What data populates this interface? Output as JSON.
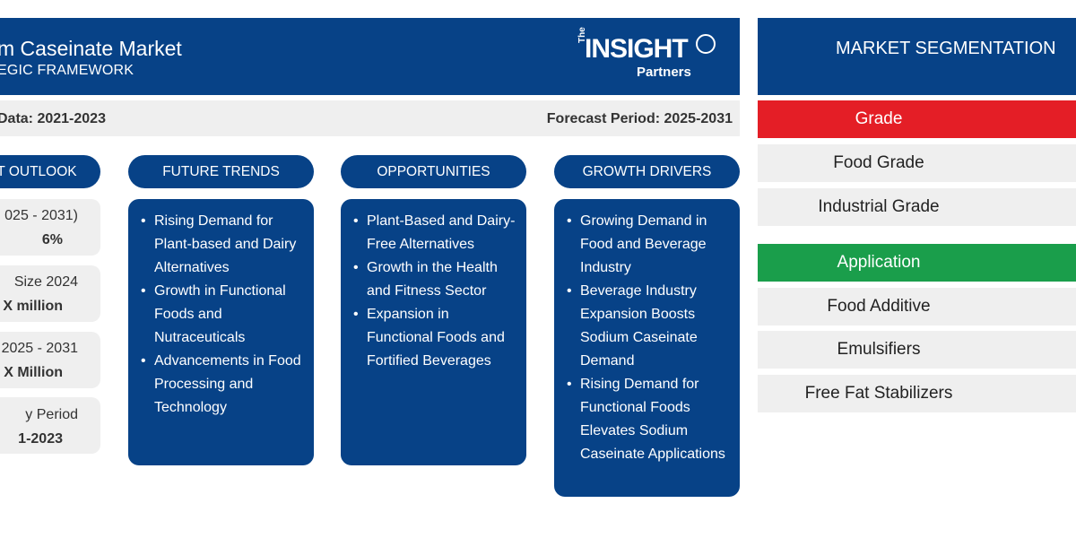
{
  "header": {
    "title": "m Caseinate Market",
    "subtitle": "EGIC FRAMEWORK",
    "logo": {
      "the": "The",
      "main": "INSIGHT",
      "sub": "Partners"
    }
  },
  "period": {
    "historical": "Data: 2021-2023",
    "forecast": "Forecast Period: 2025-2031"
  },
  "outlook": {
    "label": "T OUTLOOK",
    "stats": [
      {
        "label": "025 - 2031)",
        "value": "6%"
      },
      {
        "label": "Size 2024",
        "value": "X million"
      },
      {
        "label": "e 2025 - 2031",
        "value": "X Million"
      },
      {
        "label": "y Period",
        "value": "1-2023"
      }
    ]
  },
  "columns": [
    {
      "label": "FUTURE TRENDS",
      "items": [
        "Rising Demand for Plant-based and Dairy Alternatives",
        "Growth in Functional Foods and Nutraceuticals",
        "Advancements in Food Processing and Technology"
      ]
    },
    {
      "label": "OPPORTUNITIES",
      "items": [
        "Plant-Based and Dairy-Free Alternatives",
        "Growth in the Health and Fitness Sector",
        "Expansion in Functional Foods and Fortified Beverages"
      ]
    },
    {
      "label": "GROWTH DRIVERS",
      "items": [
        "Growing Demand in Food and Beverage Industry",
        "Beverage Industry Expansion Boosts Sodium Caseinate Demand",
        "Rising Demand for Functional Foods Elevates Sodium Caseinate Applications"
      ]
    }
  ],
  "segmentation": {
    "title": "MARKET SEGMENTATION",
    "groups": [
      {
        "name": "Grade",
        "color": "#e41e26",
        "items": [
          "Food Grade",
          "Industrial Grade"
        ]
      },
      {
        "name": "Application",
        "color": "#1a9e4b",
        "items": [
          "Food Additive",
          "Emulsifiers",
          "Free Fat Stabilizers"
        ]
      }
    ]
  },
  "colors": {
    "primary": "#074287",
    "panel": "#efefef"
  }
}
